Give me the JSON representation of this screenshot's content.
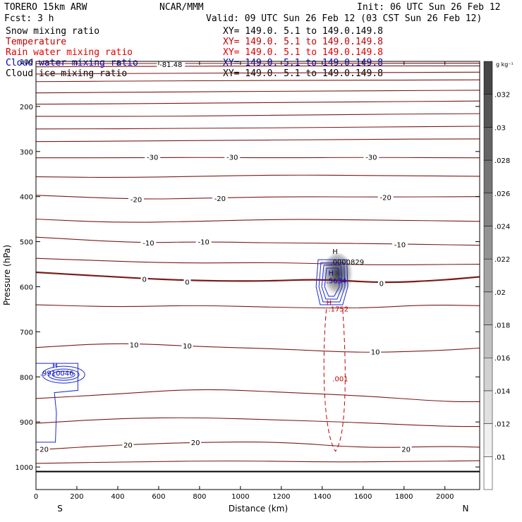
{
  "header": {
    "model": "TORERO  15km ARW",
    "center": "NCAR/MMM",
    "init": "Init: 06 UTC Sun 26 Feb 12",
    "fcst": "Fcst:    3 h",
    "valid": "Valid: 09 UTC Sun 26 Feb 12 (03 CST Sun 26 Feb 12)"
  },
  "fields": [
    {
      "name": "Snow mixing ratio",
      "xy": "XY= 149.0.  5.1 to 149.0.149.8",
      "color": "#000000"
    },
    {
      "name": "Temperature",
      "xy": "XY= 149.0.  5.1 to 149.0.149.8",
      "color": "#c00000"
    },
    {
      "name": "Rain water mixing ratio",
      "xy": "XY= 149.0.  5.1 to 149.0.149.8",
      "color": "#e00000"
    },
    {
      "name": "Cloud water mixing ratio",
      "xy": "XY= 149.0.  5.1 to 149.0.149.8",
      "color": "#0000c0"
    },
    {
      "name": "Cloud ice mixing ratio",
      "xy": "XY= 149.0.  5.1 to 149.0.149.8",
      "color": "#000000"
    }
  ],
  "chart_data": {
    "type": "contour",
    "xlabel": "Distance (km)",
    "ylabel": "Pressure (hPa)",
    "xlim": [
      0,
      2170
    ],
    "ylim": [
      1050,
      100
    ],
    "x_ticks": [
      0,
      200,
      400,
      600,
      800,
      1000,
      1200,
      1400,
      1600,
      1800,
      2000
    ],
    "y_ticks": [
      100,
      200,
      300,
      400,
      500,
      600,
      700,
      800,
      900,
      1000
    ],
    "x_end_labels": {
      "left": "S",
      "right": "N"
    },
    "temperature_labels": [
      {
        "text": "-81.48",
        "x": 660,
        "p": 106
      },
      {
        "text": "-30",
        "x": 570,
        "p": 312
      },
      {
        "text": "-30",
        "x": 960,
        "p": 312
      },
      {
        "text": "-30",
        "x": 1640,
        "p": 312
      },
      {
        "text": "-20",
        "x": 490,
        "p": 406
      },
      {
        "text": "-20",
        "x": 900,
        "p": 404
      },
      {
        "text": "-20",
        "x": 1710,
        "p": 401
      },
      {
        "text": "-10",
        "x": 550,
        "p": 502
      },
      {
        "text": "-10",
        "x": 820,
        "p": 500
      },
      {
        "text": "-10",
        "x": 1780,
        "p": 506
      },
      {
        "text": "0",
        "x": 530,
        "p": 583
      },
      {
        "text": "0",
        "x": 740,
        "p": 589
      },
      {
        "text": "0",
        "x": 1690,
        "p": 592
      },
      {
        "text": "10",
        "x": 480,
        "p": 728
      },
      {
        "text": "10",
        "x": 740,
        "p": 731
      },
      {
        "text": "10",
        "x": 1660,
        "p": 744
      },
      {
        "text": "20",
        "x": 40,
        "p": 960
      },
      {
        "text": "20",
        "x": 450,
        "p": 951
      },
      {
        "text": "20",
        "x": 780,
        "p": 945
      },
      {
        "text": "20",
        "x": 1810,
        "p": 960
      }
    ],
    "temperature_contours": [
      {
        "level": -80,
        "points": [
          [
            0,
            105
          ],
          [
            2170,
            104
          ]
        ]
      },
      {
        "level": null,
        "points": [
          [
            0,
            112
          ],
          [
            600,
            111
          ],
          [
            1200,
            110
          ],
          [
            2170,
            110
          ]
        ]
      },
      {
        "level": null,
        "points": [
          [
            0,
            128
          ],
          [
            800,
            126
          ],
          [
            1500,
            125
          ],
          [
            2170,
            124
          ]
        ]
      },
      {
        "level": null,
        "points": [
          [
            0,
            145
          ],
          [
            700,
            143
          ],
          [
            1400,
            142
          ],
          [
            2170,
            141
          ]
        ]
      },
      {
        "level": null,
        "points": [
          [
            0,
            170
          ],
          [
            600,
            168
          ],
          [
            1300,
            166
          ],
          [
            2170,
            164
          ]
        ]
      },
      {
        "level": null,
        "points": [
          [
            0,
            195
          ],
          [
            800,
            193
          ],
          [
            1500,
            190
          ],
          [
            2170,
            188
          ]
        ]
      },
      {
        "level": null,
        "points": [
          [
            0,
            222
          ],
          [
            700,
            222
          ],
          [
            1400,
            218
          ],
          [
            2170,
            216
          ]
        ]
      },
      {
        "level": null,
        "points": [
          [
            0,
            250
          ],
          [
            800,
            249
          ],
          [
            1500,
            246
          ],
          [
            2170,
            244
          ]
        ]
      },
      {
        "level": null,
        "points": [
          [
            0,
            278
          ],
          [
            800,
            276
          ],
          [
            1500,
            273
          ],
          [
            2170,
            272
          ]
        ]
      },
      {
        "level": -30,
        "points": [
          [
            0,
            314
          ],
          [
            400,
            314
          ],
          [
            800,
            313
          ],
          [
            1200,
            314
          ],
          [
            1600,
            313
          ],
          [
            2170,
            314
          ]
        ]
      },
      {
        "level": null,
        "points": [
          [
            0,
            356
          ],
          [
            400,
            358
          ],
          [
            800,
            355
          ],
          [
            1200,
            352
          ],
          [
            1600,
            353
          ],
          [
            2170,
            355
          ]
        ]
      },
      {
        "level": -20,
        "points": [
          [
            0,
            397
          ],
          [
            500,
            406
          ],
          [
            800,
            404
          ],
          [
            1200,
            400
          ],
          [
            1700,
            401
          ],
          [
            2170,
            400
          ]
        ]
      },
      {
        "level": null,
        "points": [
          [
            0,
            450
          ],
          [
            400,
            458
          ],
          [
            800,
            455
          ],
          [
            1200,
            450
          ],
          [
            1700,
            452
          ],
          [
            2170,
            455
          ]
        ]
      },
      {
        "level": -10,
        "points": [
          [
            0,
            490
          ],
          [
            500,
            503
          ],
          [
            800,
            500
          ],
          [
            1200,
            503
          ],
          [
            1600,
            504
          ],
          [
            2170,
            508
          ]
        ]
      },
      {
        "level": null,
        "points": [
          [
            0,
            537
          ],
          [
            300,
            542
          ],
          [
            700,
            548
          ],
          [
            1200,
            546
          ],
          [
            1600,
            552
          ],
          [
            2170,
            550
          ]
        ]
      },
      {
        "level": 0,
        "points": [
          [
            0,
            568
          ],
          [
            300,
            576
          ],
          [
            700,
            586
          ],
          [
            1100,
            588
          ],
          [
            1400,
            583
          ],
          [
            1700,
            592
          ],
          [
            2000,
            585
          ],
          [
            2170,
            578
          ]
        ]
      },
      {
        "level": null,
        "points": [
          [
            0,
            640
          ],
          [
            400,
            645
          ],
          [
            800,
            641
          ],
          [
            1200,
            646
          ],
          [
            1600,
            648
          ],
          [
            1900,
            640
          ],
          [
            2170,
            642
          ]
        ]
      },
      {
        "level": 10,
        "points": [
          [
            0,
            735
          ],
          [
            400,
            724
          ],
          [
            800,
            733
          ],
          [
            1200,
            738
          ],
          [
            1600,
            747
          ],
          [
            2000,
            741
          ],
          [
            2170,
            736
          ]
        ]
      },
      {
        "level": null,
        "points": [
          [
            0,
            848
          ],
          [
            400,
            838
          ],
          [
            800,
            826
          ],
          [
            1200,
            834
          ],
          [
            1600,
            842
          ],
          [
            2000,
            855
          ],
          [
            2170,
            855
          ]
        ]
      },
      {
        "level": null,
        "points": [
          [
            0,
            903
          ],
          [
            400,
            892
          ],
          [
            800,
            890
          ],
          [
            1200,
            896
          ],
          [
            1500,
            900
          ],
          [
            2000,
            910
          ],
          [
            2170,
            910
          ]
        ]
      },
      {
        "level": 20,
        "points": [
          [
            0,
            962
          ],
          [
            400,
            951
          ],
          [
            800,
            945
          ],
          [
            1200,
            944
          ],
          [
            1600,
            958
          ],
          [
            2000,
            954
          ],
          [
            2170,
            956
          ]
        ]
      },
      {
        "level": null,
        "points": [
          [
            0,
            992
          ],
          [
            500,
            988
          ],
          [
            1000,
            986
          ],
          [
            1400,
            989
          ],
          [
            1800,
            988
          ],
          [
            2170,
            986
          ]
        ]
      }
    ],
    "ground_pressure": 1010,
    "max_labels": [
      {
        "text": "H",
        "x": 1450,
        "p": 527,
        "color": "#000000"
      },
      {
        "text": ".0000829",
        "x": 1440,
        "p": 551,
        "color": "#000000"
      },
      {
        "text": "H",
        "x": 1430,
        "p": 575,
        "color": "#0000c0"
      },
      {
        "text": ".5634",
        "x": 1420,
        "p": 592,
        "color": "#0000c0"
      },
      {
        "text": "H",
        "x": 1420,
        "p": 641,
        "color": "#c00000"
      },
      {
        "text": ".1752",
        "x": 1430,
        "p": 655,
        "color": "#c00000"
      },
      {
        "text": ".001",
        "x": 1450,
        "p": 810,
        "color": "#c00000"
      },
      {
        "text": "H",
        "x": 80,
        "p": 780,
        "color": "#0000c0"
      },
      {
        "text": ".9910046",
        "x": 20,
        "p": 797,
        "color": "#0000c0"
      }
    ],
    "colorbar": {
      "unit": "g kg⁻¹",
      "levels": [
        ".01",
        ".012",
        ".014",
        ".016",
        ".018",
        ".02",
        ".022",
        ".024",
        ".026",
        ".028",
        ".03",
        ".032"
      ]
    }
  }
}
